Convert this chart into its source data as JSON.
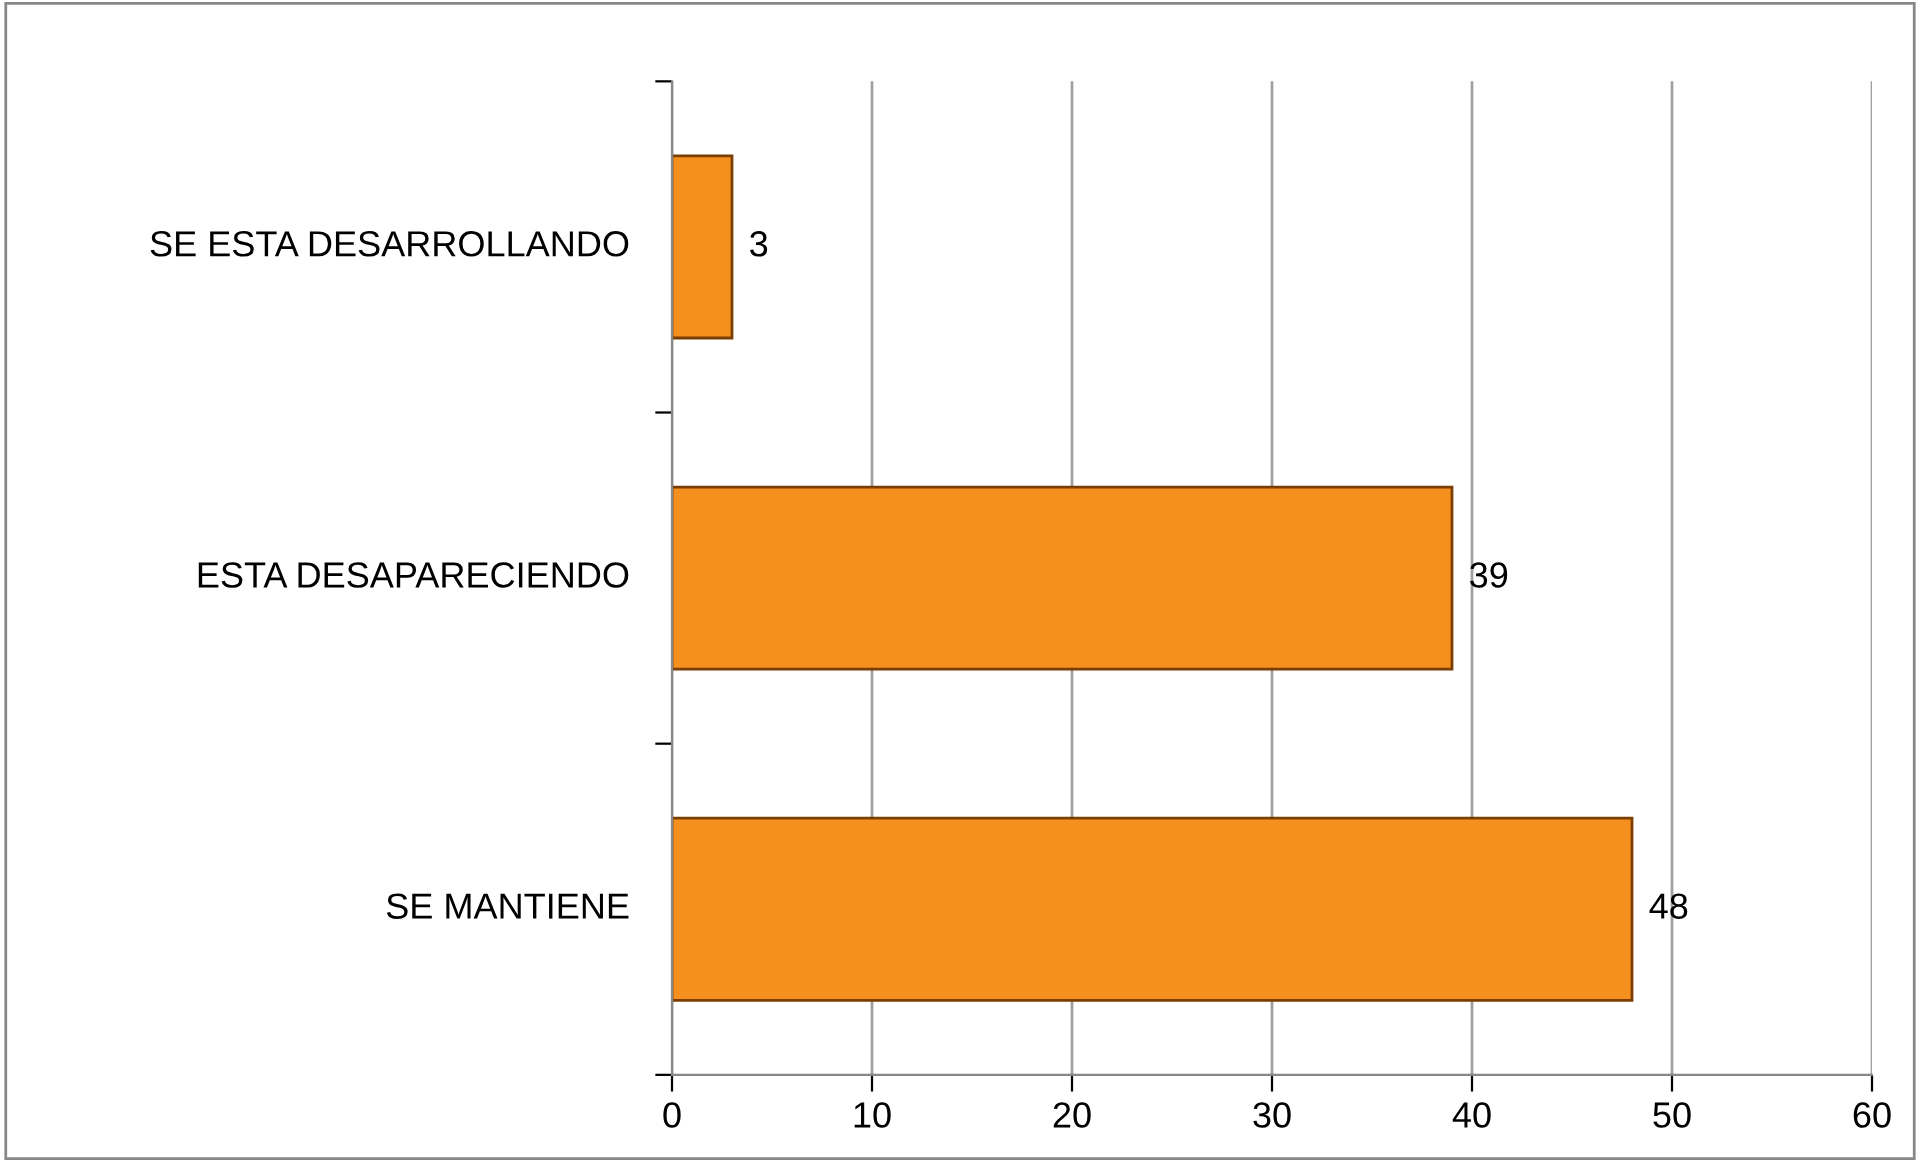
{
  "chart_data": {
    "type": "bar",
    "orientation": "horizontal",
    "categories": [
      "SE ESTA DESARROLLANDO",
      "ESTA DESAPARECIENDO",
      "SE MANTIENE"
    ],
    "values": [
      3,
      39,
      48
    ],
    "color": "#f5901e",
    "xlim": [
      0,
      60
    ],
    "xticks": [
      0,
      10,
      20,
      30,
      40,
      50,
      60
    ],
    "grid": "x",
    "data_labels": true
  }
}
